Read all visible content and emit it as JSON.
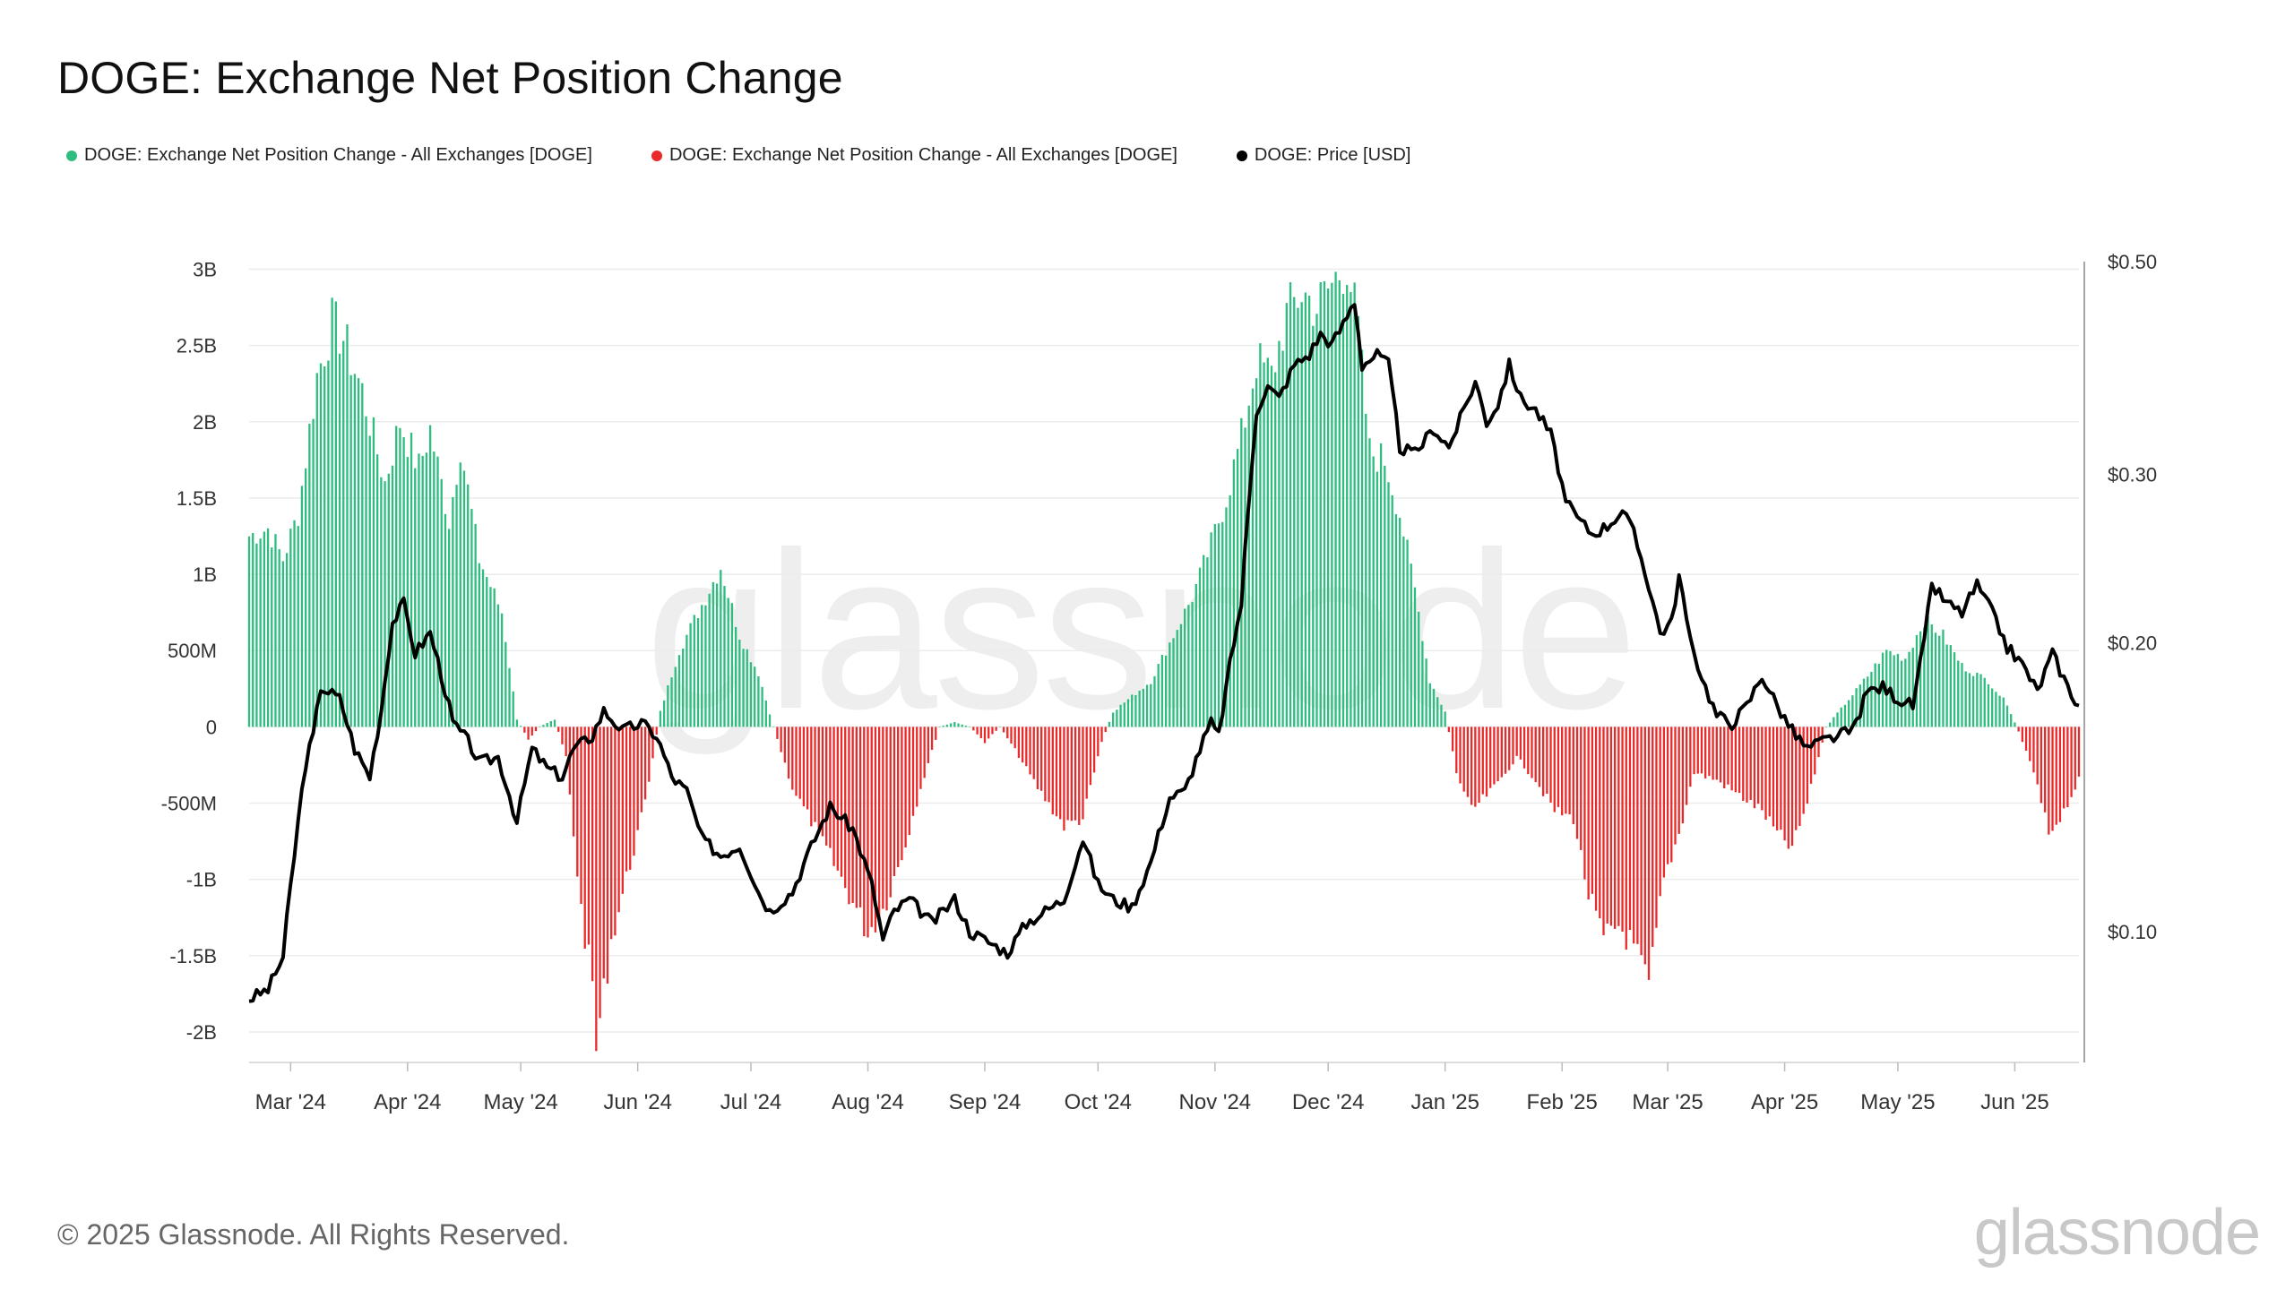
{
  "title": "DOGE: Exchange Net Position Change",
  "legend": [
    {
      "label": "DOGE: Exchange Net Position Change - All Exchanges [DOGE]",
      "color": "#2ebd7f"
    },
    {
      "label": "DOGE: Exchange Net Position Change - All Exchanges [DOGE]",
      "color": "#ea2a2a"
    },
    {
      "label": "DOGE: Price [USD]",
      "color": "#000000"
    }
  ],
  "copyright": "© 2025 Glassnode. All Rights Reserved.",
  "brand": "glassnode",
  "chart_data": {
    "type": "bar",
    "x_range": [
      "2024-02-19",
      "2025-06-18"
    ],
    "x_ticks": [
      "Mar '24",
      "Apr '24",
      "May '24",
      "Jun '24",
      "Jul '24",
      "Aug '24",
      "Sep '24",
      "Oct '24",
      "Nov '24",
      "Dec '24",
      "Jan '25",
      "Feb '25",
      "Mar '25",
      "Apr '25",
      "May '25",
      "Jun '25"
    ],
    "y_left": {
      "ticks": [
        "3B",
        "2.5B",
        "2B",
        "1.5B",
        "1B",
        "500M",
        "0",
        "-500M",
        "-1B",
        "-1.5B",
        "-2B"
      ],
      "tick_values": [
        3000000000,
        2500000000,
        2000000000,
        1500000000,
        1000000000,
        500000000,
        0,
        -500000000,
        -1000000000,
        -1500000000,
        -2000000000
      ],
      "range": [
        -2200000000,
        3050000000
      ]
    },
    "y_right": {
      "ticks": [
        "$0.50",
        "$0.30",
        "$0.20",
        "$0.10"
      ],
      "tick_values": [
        0.5,
        0.3,
        0.2,
        0.1
      ],
      "scale": "log",
      "range": [
        0.073,
        0.5
      ]
    },
    "grid": true,
    "legend_position": "top-left",
    "colors": {
      "positive": "#2ebd7f",
      "negative": "#ea2a2a",
      "price": "#000000"
    },
    "net_position_change_keypoints": [
      [
        "2024-02-19",
        1250000000
      ],
      [
        "2024-02-24",
        1300000000
      ],
      [
        "2024-02-28",
        1100000000
      ],
      [
        "2024-03-03",
        1400000000
      ],
      [
        "2024-03-08",
        2300000000
      ],
      [
        "2024-03-12",
        2650000000
      ],
      [
        "2024-03-15",
        2550000000
      ],
      [
        "2024-03-20",
        2200000000
      ],
      [
        "2024-03-26",
        1600000000
      ],
      [
        "2024-03-30",
        2000000000
      ],
      [
        "2024-04-04",
        1700000000
      ],
      [
        "2024-04-07",
        1950000000
      ],
      [
        "2024-04-12",
        1350000000
      ],
      [
        "2024-04-15",
        1850000000
      ],
      [
        "2024-04-20",
        1100000000
      ],
      [
        "2024-04-26",
        750000000
      ],
      [
        "2024-04-30",
        50000000
      ],
      [
        "2024-05-03",
        -80000000
      ],
      [
        "2024-05-06",
        0
      ],
      [
        "2024-05-10",
        50000000
      ],
      [
        "2024-05-13",
        -200000000
      ],
      [
        "2024-05-17",
        -1200000000
      ],
      [
        "2024-05-20",
        -1700000000
      ],
      [
        "2024-05-21",
        -2100000000
      ],
      [
        "2024-05-25",
        -1400000000
      ],
      [
        "2024-05-30",
        -900000000
      ],
      [
        "2024-06-03",
        -500000000
      ],
      [
        "2024-06-07",
        100000000
      ],
      [
        "2024-06-12",
        500000000
      ],
      [
        "2024-06-18",
        800000000
      ],
      [
        "2024-06-23",
        1050000000
      ],
      [
        "2024-06-28",
        600000000
      ],
      [
        "2024-07-03",
        350000000
      ],
      [
        "2024-07-07",
        0
      ],
      [
        "2024-07-12",
        -400000000
      ],
      [
        "2024-07-20",
        -750000000
      ],
      [
        "2024-07-27",
        -1100000000
      ],
      [
        "2024-08-01",
        -1350000000
      ],
      [
        "2024-08-05",
        -1200000000
      ],
      [
        "2024-08-10",
        -850000000
      ],
      [
        "2024-08-15",
        -400000000
      ],
      [
        "2024-08-20",
        0
      ],
      [
        "2024-08-24",
        30000000
      ],
      [
        "2024-08-28",
        0
      ],
      [
        "2024-09-01",
        -100000000
      ],
      [
        "2024-09-05",
        0
      ],
      [
        "2024-09-09",
        -150000000
      ],
      [
        "2024-09-15",
        -400000000
      ],
      [
        "2024-09-22",
        -650000000
      ],
      [
        "2024-09-27",
        -600000000
      ],
      [
        "2024-10-02",
        -100000000
      ],
      [
        "2024-10-05",
        100000000
      ],
      [
        "2024-10-10",
        200000000
      ],
      [
        "2024-10-15",
        300000000
      ],
      [
        "2024-10-20",
        550000000
      ],
      [
        "2024-10-26",
        850000000
      ],
      [
        "2024-10-31",
        1200000000
      ],
      [
        "2024-11-04",
        1500000000
      ],
      [
        "2024-11-08",
        1900000000
      ],
      [
        "2024-11-12",
        2400000000
      ],
      [
        "2024-11-16",
        2300000000
      ],
      [
        "2024-11-20",
        2700000000
      ],
      [
        "2024-11-24",
        2850000000
      ],
      [
        "2024-11-28",
        2750000000
      ],
      [
        "2024-12-02",
        2900000000
      ],
      [
        "2024-12-06",
        3050000000
      ],
      [
        "2024-12-09",
        2600000000
      ],
      [
        "2024-12-12",
        1800000000
      ],
      [
        "2024-12-16",
        1750000000
      ],
      [
        "2024-12-20",
        1400000000
      ],
      [
        "2024-12-24",
        900000000
      ],
      [
        "2024-12-28",
        300000000
      ],
      [
        "2025-01-01",
        100000000
      ],
      [
        "2025-01-04",
        -300000000
      ],
      [
        "2025-01-08",
        -550000000
      ],
      [
        "2025-01-14",
        -400000000
      ],
      [
        "2025-01-20",
        -200000000
      ],
      [
        "2025-01-25",
        -350000000
      ],
      [
        "2025-01-30",
        -550000000
      ],
      [
        "2025-02-04",
        -600000000
      ],
      [
        "2025-02-08",
        -1100000000
      ],
      [
        "2025-02-12",
        -1400000000
      ],
      [
        "2025-02-16",
        -1300000000
      ],
      [
        "2025-02-20",
        -1450000000
      ],
      [
        "2025-02-24",
        -1700000000
      ],
      [
        "2025-02-28",
        -1000000000
      ],
      [
        "2025-03-04",
        -700000000
      ],
      [
        "2025-03-08",
        -300000000
      ],
      [
        "2025-03-14",
        -350000000
      ],
      [
        "2025-03-20",
        -450000000
      ],
      [
        "2025-03-26",
        -550000000
      ],
      [
        "2025-03-30",
        -700000000
      ],
      [
        "2025-04-03",
        -800000000
      ],
      [
        "2025-04-07",
        -500000000
      ],
      [
        "2025-04-12",
        0
      ],
      [
        "2025-04-17",
        150000000
      ],
      [
        "2025-04-22",
        300000000
      ],
      [
        "2025-04-28",
        500000000
      ],
      [
        "2025-05-03",
        450000000
      ],
      [
        "2025-05-08",
        700000000
      ],
      [
        "2025-05-13",
        600000000
      ],
      [
        "2025-05-18",
        400000000
      ],
      [
        "2025-05-25",
        300000000
      ],
      [
        "2025-05-30",
        150000000
      ],
      [
        "2025-06-02",
        -30000000
      ],
      [
        "2025-06-06",
        -300000000
      ],
      [
        "2025-06-10",
        -700000000
      ],
      [
        "2025-06-14",
        -550000000
      ],
      [
        "2025-06-18",
        -350000000
      ]
    ],
    "price_keypoints": [
      [
        "2024-02-19",
        0.085
      ],
      [
        "2024-02-24",
        0.087
      ],
      [
        "2024-02-28",
        0.094
      ],
      [
        "2024-03-02",
        0.12
      ],
      [
        "2024-03-05",
        0.15
      ],
      [
        "2024-03-07",
        0.16
      ],
      [
        "2024-03-09",
        0.18
      ],
      [
        "2024-03-14",
        0.175
      ],
      [
        "2024-03-18",
        0.155
      ],
      [
        "2024-03-22",
        0.145
      ],
      [
        "2024-03-25",
        0.17
      ],
      [
        "2024-03-28",
        0.21
      ],
      [
        "2024-03-31",
        0.22
      ],
      [
        "2024-04-03",
        0.195
      ],
      [
        "2024-04-07",
        0.205
      ],
      [
        "2024-04-10",
        0.185
      ],
      [
        "2024-04-13",
        0.165
      ],
      [
        "2024-04-17",
        0.158
      ],
      [
        "2024-04-20",
        0.15
      ],
      [
        "2024-04-25",
        0.152
      ],
      [
        "2024-04-30",
        0.13
      ],
      [
        "2024-05-04",
        0.155
      ],
      [
        "2024-05-08",
        0.148
      ],
      [
        "2024-05-12",
        0.145
      ],
      [
        "2024-05-15",
        0.155
      ],
      [
        "2024-05-20",
        0.16
      ],
      [
        "2024-05-23",
        0.17
      ],
      [
        "2024-05-28",
        0.162
      ],
      [
        "2024-06-02",
        0.165
      ],
      [
        "2024-06-06",
        0.16
      ],
      [
        "2024-06-10",
        0.145
      ],
      [
        "2024-06-14",
        0.14
      ],
      [
        "2024-06-18",
        0.125
      ],
      [
        "2024-06-23",
        0.12
      ],
      [
        "2024-06-28",
        0.123
      ],
      [
        "2024-07-03",
        0.11
      ],
      [
        "2024-07-06",
        0.105
      ],
      [
        "2024-07-12",
        0.11
      ],
      [
        "2024-07-18",
        0.125
      ],
      [
        "2024-07-22",
        0.135
      ],
      [
        "2024-07-28",
        0.128
      ],
      [
        "2024-08-02",
        0.112
      ],
      [
        "2024-08-05",
        0.098
      ],
      [
        "2024-08-08",
        0.105
      ],
      [
        "2024-08-12",
        0.108
      ],
      [
        "2024-08-18",
        0.102
      ],
      [
        "2024-08-24",
        0.108
      ],
      [
        "2024-08-28",
        0.1
      ],
      [
        "2024-09-03",
        0.097
      ],
      [
        "2024-09-07",
        0.095
      ],
      [
        "2024-09-12",
        0.102
      ],
      [
        "2024-09-17",
        0.105
      ],
      [
        "2024-09-22",
        0.108
      ],
      [
        "2024-09-27",
        0.125
      ],
      [
        "2024-10-01",
        0.112
      ],
      [
        "2024-10-05",
        0.108
      ],
      [
        "2024-10-10",
        0.106
      ],
      [
        "2024-10-15",
        0.118
      ],
      [
        "2024-10-20",
        0.138
      ],
      [
        "2024-10-24",
        0.14
      ],
      [
        "2024-10-28",
        0.155
      ],
      [
        "2024-10-31",
        0.165
      ],
      [
        "2024-11-02",
        0.16
      ],
      [
        "2024-11-05",
        0.19
      ],
      [
        "2024-11-08",
        0.22
      ],
      [
        "2024-11-10",
        0.28
      ],
      [
        "2024-11-12",
        0.35
      ],
      [
        "2024-11-15",
        0.37
      ],
      [
        "2024-11-18",
        0.36
      ],
      [
        "2024-11-22",
        0.39
      ],
      [
        "2024-11-26",
        0.4
      ],
      [
        "2024-11-29",
        0.42
      ],
      [
        "2024-12-02",
        0.41
      ],
      [
        "2024-12-05",
        0.43
      ],
      [
        "2024-12-08",
        0.455
      ],
      [
        "2024-12-10",
        0.39
      ],
      [
        "2024-12-14",
        0.4
      ],
      [
        "2024-12-17",
        0.39
      ],
      [
        "2024-12-20",
        0.32
      ],
      [
        "2024-12-24",
        0.315
      ],
      [
        "2024-12-29",
        0.335
      ],
      [
        "2025-01-02",
        0.32
      ],
      [
        "2025-01-06",
        0.35
      ],
      [
        "2025-01-09",
        0.375
      ],
      [
        "2025-01-12",
        0.34
      ],
      [
        "2025-01-15",
        0.355
      ],
      [
        "2025-01-18",
        0.39
      ],
      [
        "2025-01-21",
        0.36
      ],
      [
        "2025-01-25",
        0.35
      ],
      [
        "2025-01-29",
        0.33
      ],
      [
        "2025-02-02",
        0.28
      ],
      [
        "2025-02-05",
        0.27
      ],
      [
        "2025-02-09",
        0.26
      ],
      [
        "2025-02-13",
        0.265
      ],
      [
        "2025-02-17",
        0.275
      ],
      [
        "2025-02-20",
        0.26
      ],
      [
        "2025-02-24",
        0.23
      ],
      [
        "2025-02-27",
        0.205
      ],
      [
        "2025-03-02",
        0.21
      ],
      [
        "2025-03-04",
        0.235
      ],
      [
        "2025-03-07",
        0.2
      ],
      [
        "2025-03-11",
        0.18
      ],
      [
        "2025-03-14",
        0.168
      ],
      [
        "2025-03-18",
        0.165
      ],
      [
        "2025-03-22",
        0.172
      ],
      [
        "2025-03-26",
        0.185
      ],
      [
        "2025-03-30",
        0.172
      ],
      [
        "2025-04-03",
        0.162
      ],
      [
        "2025-04-07",
        0.155
      ],
      [
        "2025-04-11",
        0.158
      ],
      [
        "2025-04-15",
        0.16
      ],
      [
        "2025-04-19",
        0.162
      ],
      [
        "2025-04-23",
        0.178
      ],
      [
        "2025-04-27",
        0.18
      ],
      [
        "2025-05-01",
        0.175
      ],
      [
        "2025-05-05",
        0.172
      ],
      [
        "2025-05-08",
        0.2
      ],
      [
        "2025-05-10",
        0.23
      ],
      [
        "2025-05-14",
        0.22
      ],
      [
        "2025-05-18",
        0.215
      ],
      [
        "2025-05-22",
        0.23
      ],
      [
        "2025-05-26",
        0.215
      ],
      [
        "2025-05-30",
        0.198
      ],
      [
        "2025-06-03",
        0.19
      ],
      [
        "2025-06-07",
        0.178
      ],
      [
        "2025-06-11",
        0.195
      ],
      [
        "2025-06-15",
        0.18
      ],
      [
        "2025-06-18",
        0.172
      ]
    ]
  }
}
